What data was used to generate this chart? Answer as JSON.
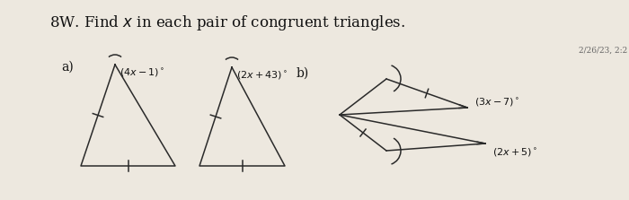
{
  "title": "8W. Find $x$ in each pair of congruent triangles.",
  "title_fontsize": 12,
  "bg_color": "#ede8df",
  "label_a": "a)",
  "label_b": "b)",
  "timestamp": "2/26/23, 2:2",
  "tri1_label": "$(4x - 1)^\\circ$",
  "tri2_label": "$(2x + 43)^\\circ$",
  "tri3_label": "$(3x - 7)^\\circ$",
  "tri4_label": "$(2x + 5)^\\circ$"
}
